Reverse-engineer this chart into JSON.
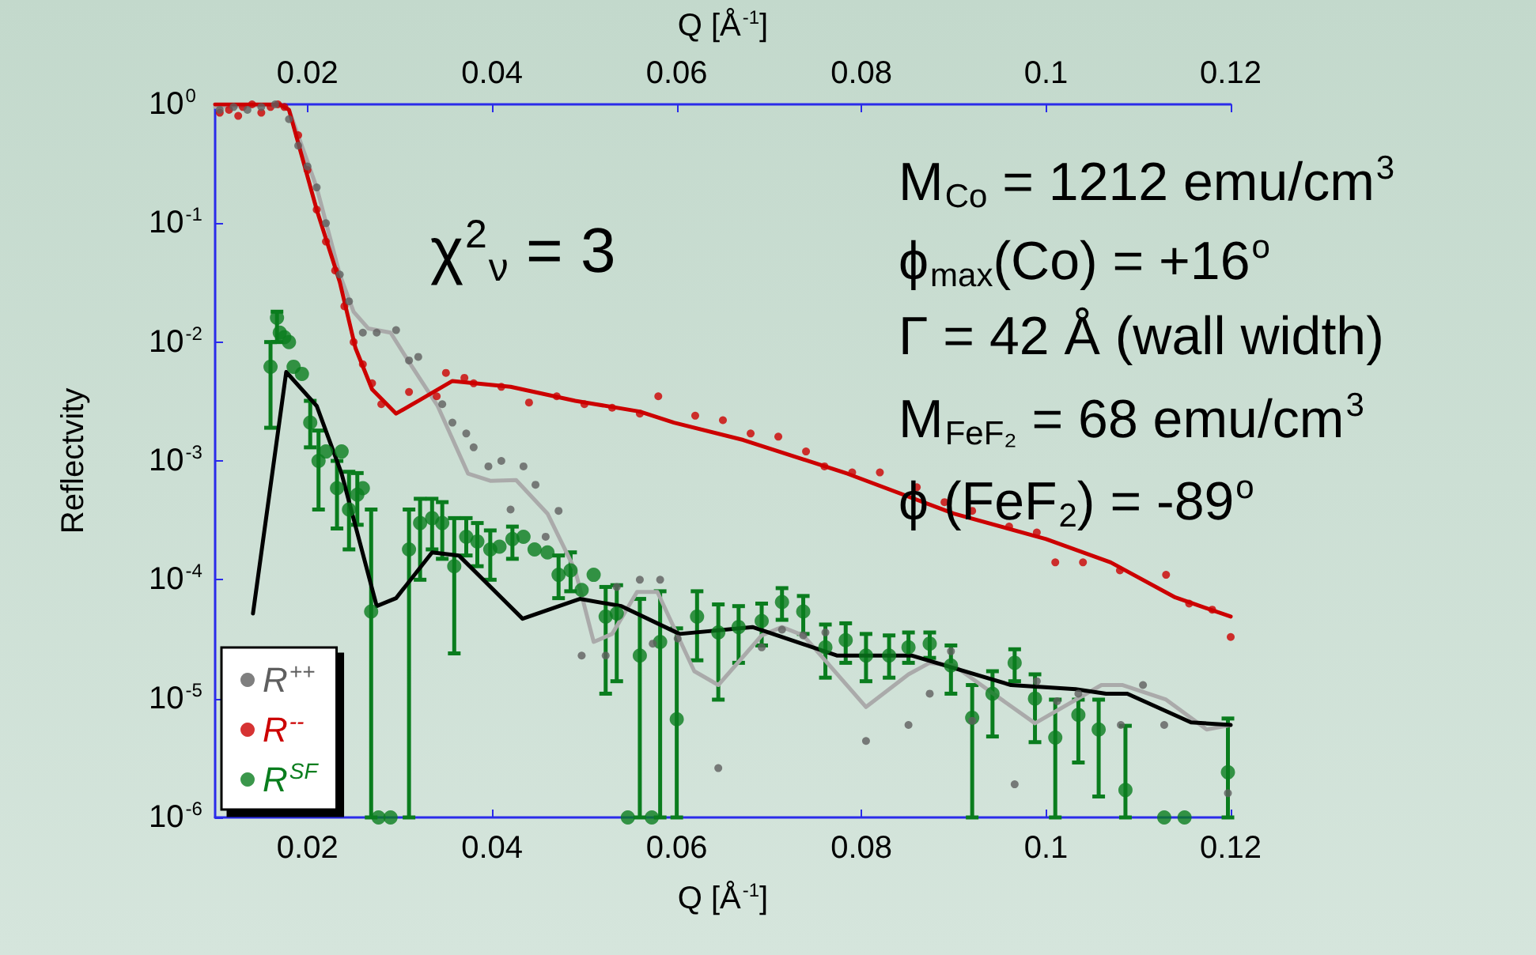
{
  "chart_data": {
    "type": "scatter",
    "xlabel": "Q [Å$^{-1}$]",
    "x2label": "Q [Å$^{-1}$]",
    "ylabel": "Reflectvity",
    "xlim": [
      0.01,
      0.12
    ],
    "xticks": [
      0.02,
      0.04,
      0.06,
      0.08,
      0.1,
      0.12
    ],
    "x2lim": [
      0.01,
      0.12
    ],
    "x2ticks": [
      0.02,
      0.04,
      0.06,
      0.08,
      0.1,
      0.12
    ],
    "ylim": [
      1e-06,
      1
    ],
    "yticks": [
      {
        "value": 1e-06,
        "label": "10$^{-6}$"
      },
      {
        "value": 1e-05,
        "label": "10$^{-5}$"
      },
      {
        "value": 0.0001,
        "label": "10$^{-4}$"
      },
      {
        "value": 0.001,
        "label": "10$^{-3}$"
      },
      {
        "value": 0.01,
        "label": "10$^{-2}$"
      },
      {
        "value": 0.1,
        "label": "10$^{-1}$"
      },
      {
        "value": 1,
        "label": "10$^{0}$"
      }
    ],
    "log": "y",
    "grid": false,
    "legend": "bottom left",
    "annotations": [
      "χ$^{2}$$_{ν}$ = 3",
      "M$_{Co}$ = 1212 emu/cm$^{3}$",
      "ϕ$_{max}$(Co) = +16$^{o}$",
      "Γ = 42 Å (wall width)",
      "M$_{FeF₂}$ = 68 emu/cm$^{3}$",
      "ϕ (FeF$_{2}$) = -89$^{o}$"
    ],
    "series": [
      {
        "name": "R$^{++}$",
        "type": "scatter",
        "marker": "circle",
        "color": "#5f5f5f",
        "x": [
          0.0105,
          0.012,
          0.0135,
          0.015,
          0.0165,
          0.018,
          0.019,
          0.02,
          0.021,
          0.022,
          0.0235,
          0.0245,
          0.026,
          0.0275,
          0.0296,
          0.031,
          0.032,
          0.0346,
          0.0357,
          0.0372,
          0.038,
          0.0396,
          0.041,
          0.042,
          0.0434,
          0.0447,
          0.0458,
          0.0472,
          0.0497,
          0.0523,
          0.0535,
          0.056,
          0.0574,
          0.0582,
          0.0601,
          0.0645,
          0.0692,
          0.0714,
          0.0737,
          0.0761,
          0.0805,
          0.0851,
          0.0874,
          0.0897,
          0.092,
          0.0966,
          0.099,
          0.1012,
          0.1035,
          0.1081,
          0.1105,
          0.1128,
          0.1197
        ],
        "values": [
          0.9,
          0.95,
          0.9,
          0.95,
          1.0,
          0.75,
          0.45,
          0.3,
          0.2,
          0.1,
          0.037,
          0.022,
          0.012,
          0.012,
          0.0126,
          0.007,
          0.0075,
          0.003,
          0.0021,
          0.0017,
          0.0013,
          0.0009,
          0.001,
          0.00039,
          0.0009,
          0.00063,
          0.00023,
          0.00038,
          2.3e-05,
          2.3e-05,
          8.7e-05,
          0.0001,
          2.9e-05,
          0.0001,
          3.2e-05,
          2.6e-06,
          2.7e-05,
          3.8e-05,
          3.4e-05,
          3.6e-05,
          4.4e-06,
          6e-06,
          1.1e-05,
          2.5e-05,
          6.5e-06,
          1.9e-06,
          1.4e-05,
          9.5e-06,
          1.1e-05,
          6e-06,
          1.3e-05,
          6e-06,
          1.6e-06
        ]
      },
      {
        "name": "R$^{--}$",
        "type": "scatter",
        "marker": "circle",
        "color": "#cc0000",
        "x": [
          0.0105,
          0.0115,
          0.0125,
          0.013,
          0.014,
          0.015,
          0.016,
          0.0168,
          0.0175,
          0.019,
          0.02,
          0.021,
          0.022,
          0.023,
          0.024,
          0.025,
          0.026,
          0.027,
          0.028,
          0.031,
          0.034,
          0.035,
          0.037,
          0.038,
          0.041,
          0.044,
          0.047,
          0.05,
          0.053,
          0.056,
          0.058,
          0.062,
          0.065,
          0.068,
          0.071,
          0.074,
          0.076,
          0.079,
          0.082,
          0.086,
          0.089,
          0.092,
          0.096,
          0.099,
          0.101,
          0.104,
          0.108,
          0.113,
          0.1155,
          0.118,
          0.12
        ],
        "values": [
          0.85,
          0.9,
          0.8,
          0.95,
          1.0,
          0.85,
          0.95,
          1.0,
          0.95,
          0.55,
          0.28,
          0.13,
          0.07,
          0.04,
          0.02,
          0.01,
          0.0065,
          0.0045,
          0.003,
          0.0038,
          0.0035,
          0.0055,
          0.005,
          0.0045,
          0.0042,
          0.0031,
          0.0035,
          0.003,
          0.0028,
          0.0025,
          0.0035,
          0.0024,
          0.0022,
          0.0017,
          0.0016,
          0.0012,
          0.0009,
          0.0008,
          0.0008,
          0.0006,
          0.00045,
          0.00038,
          0.00028,
          0.00025,
          0.00014,
          0.00014,
          0.00012,
          0.00011,
          6.3e-05,
          5.6e-05,
          3.3e-05
        ]
      },
      {
        "name": "R$^{SF}$",
        "type": "scatter",
        "marker": "circle",
        "color": "#0a7d1e",
        "x": [
          0.016,
          0.0167,
          0.017,
          0.0175,
          0.018,
          0.0185,
          0.0194,
          0.0203,
          0.0212,
          0.022,
          0.0232,
          0.0237,
          0.0245,
          0.0254,
          0.026,
          0.0269,
          0.0277,
          0.029,
          0.031,
          0.0322,
          0.0335,
          0.0346,
          0.0359,
          0.0372,
          0.0384,
          0.0398,
          0.0408,
          0.0422,
          0.0434,
          0.0446,
          0.046,
          0.0472,
          0.0485,
          0.0497,
          0.051,
          0.0523,
          0.0535,
          0.0547,
          0.056,
          0.0573,
          0.0582,
          0.06,
          0.0622,
          0.0645,
          0.0667,
          0.0692,
          0.0714,
          0.0737,
          0.0761,
          0.0783,
          0.0805,
          0.083,
          0.0851,
          0.0874,
          0.0897,
          0.092,
          0.0942,
          0.0966,
          0.0988,
          0.101,
          0.1035,
          0.1057,
          0.1086,
          0.1128,
          0.115,
          0.1197
        ],
        "values": [
          0.0062,
          0.016,
          0.012,
          0.011,
          0.01,
          0.0062,
          0.0054,
          0.0021,
          0.001,
          0.0012,
          0.00059,
          0.0012,
          0.00039,
          0.00052,
          0.00059,
          5.4e-05,
          1e-06,
          1e-06,
          0.00018,
          0.0003,
          0.00033,
          0.0003,
          0.00013,
          0.00023,
          0.00021,
          0.00018,
          0.00019,
          0.00022,
          0.00023,
          0.00018,
          0.00017,
          0.00011,
          0.00012,
          8.2e-05,
          0.00011,
          4.9e-05,
          5.2e-05,
          1e-06,
          2.3e-05,
          1e-06,
          3e-05,
          6.7e-06,
          4.9e-05,
          3.6e-05,
          4e-05,
          4.5e-05,
          6.5e-05,
          5.4e-05,
          2.7e-05,
          3.1e-05,
          2.3e-05,
          2.3e-05,
          2.7e-05,
          2.9e-05,
          1.9e-05,
          6.9e-06,
          1.1e-05,
          2e-05,
          1e-05,
          4.7e-06,
          7.3e-06,
          5.5e-06,
          1.7e-06,
          1e-06,
          1e-06,
          2.4e-06
        ],
        "errors": [
          [
            0.0019,
            0.01
          ],
          [
            0.01,
            0.018
          ],
          null,
          null,
          null,
          null,
          null,
          [
            0.0013,
            0.0032
          ],
          [
            0.00039,
            0.0018
          ],
          null,
          [
            0.00027,
            0.001
          ],
          null,
          [
            0.00018,
            0.00081
          ],
          [
            0.00029,
            0.00079
          ],
          null,
          [
            1e-06,
            0.00039
          ],
          null,
          null,
          [
            1e-06,
            0.00039
          ],
          [
            0.0001,
            0.00048
          ],
          [
            0.00018,
            0.00048
          ],
          [
            0.00015,
            0.00045
          ],
          [
            2.4e-05,
            0.00033
          ],
          [
            0.00016,
            0.00033
          ],
          [
            0.00013,
            0.0003
          ],
          [
            0.0001,
            0.00026
          ],
          null,
          [
            0.00015,
            0.00028
          ],
          null,
          null,
          null,
          [
            7e-05,
            0.00016
          ],
          [
            8e-05,
            0.00017
          ],
          null,
          null,
          [
            1.1e-05,
            8.7e-05
          ],
          [
            1.4e-05,
            9e-05
          ],
          null,
          [
            1e-06,
            6.9e-05
          ],
          null,
          [
            1e-06,
            8e-05
          ],
          [
            1e-06,
            3.9e-05
          ],
          [
            2.1e-05,
            8e-05
          ],
          [
            9.8e-06,
            6.2e-05
          ],
          [
            2e-05,
            6e-05
          ],
          [
            2.8e-05,
            6.3e-05
          ],
          [
            4.6e-05,
            8.5e-05
          ],
          [
            3.5e-05,
            7.3e-05
          ],
          [
            1.5e-05,
            4.2e-05
          ],
          [
            2e-05,
            4.3e-05
          ],
          [
            1.4e-05,
            3.5e-05
          ],
          [
            1.5e-05,
            3.4e-05
          ],
          [
            2e-05,
            3.6e-05
          ],
          [
            2.2e-05,
            3.6e-05
          ],
          [
            1.1e-05,
            2.8e-05
          ],
          [
            1e-06,
            1.3e-05
          ],
          [
            4.8e-06,
            1.7e-05
          ],
          [
            1.4e-05,
            2.6e-05
          ],
          [
            4.3e-06,
            1.6e-05
          ],
          [
            1e-06,
            9.8e-06
          ],
          [
            2.9e-06,
            9.8e-06
          ],
          [
            1.5e-06,
            9.8e-06
          ],
          [
            1e-06,
            5.9e-06
          ],
          null,
          null,
          [
            1e-06,
            6.8e-06
          ]
        ]
      },
      {
        "type": "line",
        "marker": "none",
        "color": "#aaaaaa",
        "x": [
          0.01,
          0.017,
          0.018,
          0.021,
          0.0235,
          0.025,
          0.0266,
          0.029,
          0.031,
          0.0341,
          0.0374,
          0.0398,
          0.0426,
          0.046,
          0.049,
          0.051,
          0.053,
          0.0557,
          0.0579,
          0.0619,
          0.0645,
          0.0692,
          0.0714,
          0.0737,
          0.0805,
          0.0851,
          0.0874,
          0.09,
          0.0988,
          0.106,
          0.1083,
          0.113,
          0.1174,
          0.12
        ],
        "values": [
          0.95,
          1.0,
          0.9,
          0.2,
          0.037,
          0.018,
          0.013,
          0.012,
          0.0068,
          0.0029,
          0.00078,
          0.00068,
          0.00069,
          0.00036,
          0.00012,
          3e-05,
          3.5e-05,
          7.9e-05,
          7.9e-05,
          1.7e-05,
          1.3e-05,
          3.4e-05,
          4e-05,
          3.4e-05,
          8.5e-06,
          1.6e-05,
          2e-05,
          1.9e-05,
          6.2e-06,
          1.3e-05,
          1.3e-05,
          9.8e-06,
          5.5e-06,
          6e-06
        ]
      },
      {
        "type": "line",
        "marker": "none",
        "color": "#cc0000",
        "x": [
          0.01,
          0.017,
          0.018,
          0.021,
          0.0235,
          0.0252,
          0.027,
          0.0296,
          0.032,
          0.0357,
          0.042,
          0.049,
          0.056,
          0.0597,
          0.0672,
          0.0785,
          0.09,
          0.1,
          0.107,
          0.114,
          0.12
        ],
        "values": [
          1.0,
          1.0,
          0.9,
          0.13,
          0.032,
          0.0089,
          0.004,
          0.0025,
          0.0032,
          0.0047,
          0.0042,
          0.0032,
          0.0026,
          0.0021,
          0.0015,
          0.00078,
          0.00036,
          0.00022,
          0.00014,
          7.1e-05,
          4.9e-05
        ]
      },
      {
        "type": "line",
        "marker": "none",
        "color": "#000000",
        "x": [
          0.0141,
          0.0177,
          0.021,
          0.0237,
          0.0275,
          0.0296,
          0.0335,
          0.0364,
          0.0433,
          0.0495,
          0.054,
          0.0603,
          0.0682,
          0.0774,
          0.0855,
          0.0962,
          0.1032,
          0.1065,
          0.1088,
          0.1157,
          0.12
        ],
        "values": [
          5.2e-05,
          0.0056,
          0.0029,
          0.00078,
          6e-05,
          7e-05,
          0.00017,
          0.00016,
          4.7e-05,
          6.9e-05,
          6e-05,
          3.5e-05,
          4e-05,
          2.3e-05,
          2.3e-05,
          1.3e-05,
          1.2e-05,
          1.1e-05,
          1.1e-05,
          6.3e-06,
          6e-06
        ]
      }
    ]
  }
}
